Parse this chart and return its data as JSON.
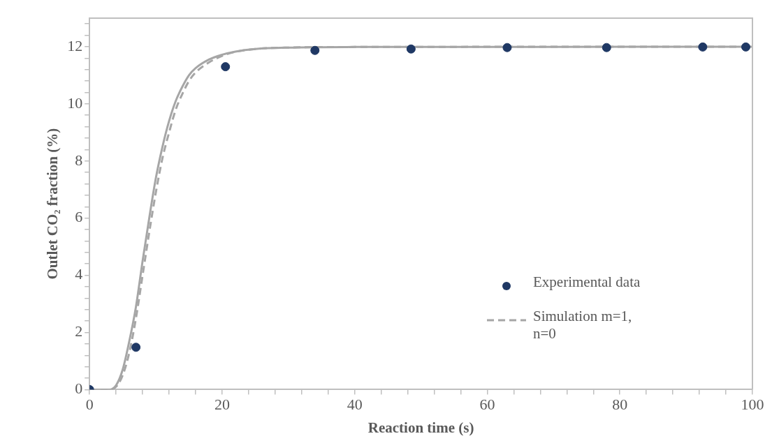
{
  "chart_data": {
    "type": "line",
    "xlabel": "Reaction time (s)",
    "ylabel": "Outlet CO₂ fraction (%)",
    "xlim": [
      0,
      100
    ],
    "ylim": [
      0,
      13
    ],
    "xticks": [
      0,
      {
        "value": 4,
        "label": null
      },
      {
        "value": 8,
        "label": null
      },
      {
        "value": 12,
        "label": null
      },
      {
        "value": 16,
        "label": null
      },
      20,
      {
        "value": 24,
        "label": null
      },
      {
        "value": 28,
        "label": null
      },
      {
        "value": 32,
        "label": null
      },
      {
        "value": 36,
        "label": null
      },
      40,
      {
        "value": 44,
        "label": null
      },
      {
        "value": 48,
        "label": null
      },
      {
        "value": 52,
        "label": null
      },
      {
        "value": 56,
        "label": null
      },
      60,
      {
        "value": 64,
        "label": null
      },
      {
        "value": 68,
        "label": null
      },
      {
        "value": 72,
        "label": null
      },
      {
        "value": 76,
        "label": null
      },
      80,
      {
        "value": 84,
        "label": null
      },
      {
        "value": 88,
        "label": null
      },
      {
        "value": 92,
        "label": null
      },
      {
        "value": 96,
        "label": null
      },
      100
    ],
    "yticks": [
      0,
      {
        "value": 0.4,
        "label": null
      },
      {
        "value": 0.8,
        "label": null
      },
      {
        "value": 1.2,
        "label": null
      },
      {
        "value": 1.6,
        "label": null
      },
      2,
      {
        "value": 2.4,
        "label": null
      },
      {
        "value": 2.8,
        "label": null
      },
      {
        "value": 3.2,
        "label": null
      },
      {
        "value": 3.6,
        "label": null
      },
      4,
      {
        "value": 4.4,
        "label": null
      },
      {
        "value": 4.8,
        "label": null
      },
      {
        "value": 5.2,
        "label": null
      },
      {
        "value": 5.6,
        "label": null
      },
      6,
      {
        "value": 6.4,
        "label": null
      },
      {
        "value": 6.8,
        "label": null
      },
      {
        "value": 7.2,
        "label": null
      },
      {
        "value": 7.6,
        "label": null
      },
      8,
      {
        "value": 8.4,
        "label": null
      },
      {
        "value": 8.8,
        "label": null
      },
      {
        "value": 9.2,
        "label": null
      },
      {
        "value": 9.6,
        "label": null
      },
      10,
      {
        "value": 10.4,
        "label": null
      },
      {
        "value": 10.8,
        "label": null
      },
      {
        "value": 11.2,
        "label": null
      },
      {
        "value": 11.6,
        "label": null
      },
      12,
      {
        "value": 12.4,
        "label": null
      },
      {
        "value": 12.8,
        "label": null
      }
    ],
    "grid": false,
    "legend": "right",
    "series": [
      {
        "line_style": "solid",
        "marker": "none",
        "color": "#a6a6a6",
        "x": [
          0,
          3,
          4,
          5,
          6,
          7,
          8,
          9,
          10,
          11,
          12,
          13,
          14,
          15,
          16,
          18,
          20,
          22,
          25,
          30,
          40,
          100
        ],
        "values": [
          0,
          0,
          0.15,
          0.7,
          1.7,
          2.9,
          4.5,
          6.0,
          7.4,
          8.5,
          9.4,
          10.1,
          10.6,
          11.0,
          11.25,
          11.55,
          11.72,
          11.83,
          11.92,
          11.97,
          11.99,
          12
        ]
      },
      {
        "name": "Simulation m=1, n=0",
        "line_style": "dashed",
        "marker": "none",
        "color": "#a6a6a6",
        "x": [
          0,
          3,
          4,
          5,
          6,
          7,
          8,
          9,
          10,
          11,
          12,
          13,
          14,
          15,
          16,
          18,
          20,
          22,
          25,
          30,
          40,
          100
        ],
        "values": [
          0,
          0,
          0.1,
          0.5,
          1.3,
          2.5,
          4.0,
          5.5,
          6.9,
          8.1,
          9.0,
          9.8,
          10.35,
          10.8,
          11.1,
          11.45,
          11.68,
          11.82,
          11.92,
          11.97,
          11.99,
          12
        ]
      },
      {
        "type": "scatter",
        "name": "Experimental data",
        "marker": "circle",
        "color": "#1f3864",
        "x": [
          0,
          7,
          20.5,
          34,
          48.5,
          63,
          78,
          92.5,
          99
        ],
        "values": [
          0,
          1.48,
          11.3,
          11.87,
          11.92,
          11.97,
          11.97,
          11.99,
          11.99
        ]
      }
    ]
  }
}
